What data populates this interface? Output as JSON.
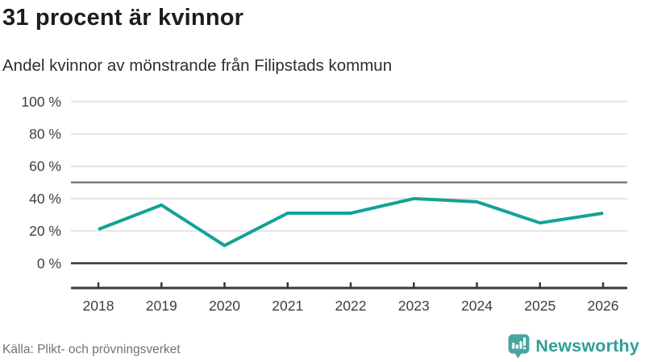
{
  "header": {
    "title": "31 procent är kvinnor",
    "subtitle": "Andel kvinnor av mönstrande från Filipstads kommun"
  },
  "chart_data": {
    "type": "line",
    "title": "Andel kvinnor av mönstrande från Filipstads kommun",
    "categories": [
      "2018",
      "2019",
      "2020",
      "2021",
      "2022",
      "2023",
      "2024",
      "2025",
      "2026"
    ],
    "series": [
      {
        "name": "Andel kvinnor av mönstrande (%)",
        "values": [
          21,
          36,
          11,
          31,
          31,
          40,
          38,
          25,
          31
        ]
      }
    ],
    "ylim": [
      0,
      100
    ],
    "yticks": [
      0,
      20,
      40,
      60,
      80,
      100
    ],
    "ytick_suffix": " %",
    "reference_line_y": 50,
    "grid": "horizontal",
    "legend_position": "none",
    "line_color": "#13a296"
  },
  "footer": {
    "source": "Källa: Plikt- och prövningsverket",
    "logo_text": "Newsworthy"
  },
  "colors": {
    "line": "#13a296",
    "grid_light": "#e4e4e4",
    "grid_reference": "#7d7d7d",
    "axis_dark": "#383838",
    "tick_text": "#3d3d3d",
    "logo_teal": "#2f9f99",
    "logo_icon_teal": "#4aa5a0",
    "title_text": "#1c1c1a",
    "muted_text": "#70737a"
  }
}
